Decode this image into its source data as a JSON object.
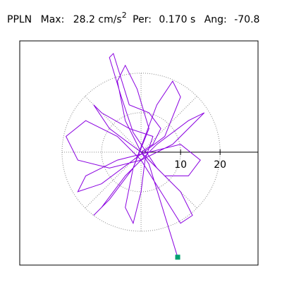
{
  "chart_data": {
    "type": "line",
    "title": {
      "name": "PPLN",
      "max_label": "Max:",
      "max_value": "28.2 cm/s",
      "max_exp": "2",
      "per_label": "Per:",
      "per_value": "0.170 s",
      "ang_label": "Ang:",
      "ang_value": "-70.8"
    },
    "xlim": [
      -30.7,
      29.6
    ],
    "ylim": [
      -28.6,
      28.2
    ],
    "xticks": [
      10,
      20
    ],
    "grid": true,
    "end_marker_color": "#00a070",
    "x": [
      0,
      3,
      5,
      2,
      -3,
      -7,
      -8,
      -5,
      -2,
      4,
      10,
      13,
      10,
      5,
      0,
      -6,
      -14,
      -19,
      -16,
      -8,
      0,
      8,
      14,
      16,
      12,
      4,
      -4,
      -10,
      -12,
      -8,
      -2,
      2,
      -1,
      -4,
      -6,
      -4,
      0,
      6,
      12,
      15,
      10,
      2,
      -6,
      -14,
      -16,
      -10,
      -2,
      6,
      10,
      8,
      4,
      1,
      -2,
      -4,
      -2,
      0,
      1,
      3,
      -3,
      -10,
      -12,
      -8,
      0,
      2,
      9.27
    ],
    "series": [
      {
        "color": "#8a00e0",
        "values": [
          0,
          2,
          6,
          10,
          12,
          25,
          24,
          14,
          5,
          -4,
          -10,
          -16,
          -18,
          -10,
          -2,
          4,
          8,
          4,
          -2,
          -4,
          -2,
          2,
          8,
          10,
          8,
          2,
          -6,
          -14,
          -16,
          -12,
          -4,
          6,
          16,
          22,
          18,
          8,
          0,
          -6,
          -6,
          -2,
          2,
          0,
          -2,
          -6,
          -10,
          -8,
          -2,
          4,
          14,
          18,
          12,
          4,
          -4,
          -14,
          -18,
          -10,
          -2,
          4,
          6,
          10,
          12,
          6,
          0,
          -3,
          -26.6
        ]
      }
    ]
  }
}
